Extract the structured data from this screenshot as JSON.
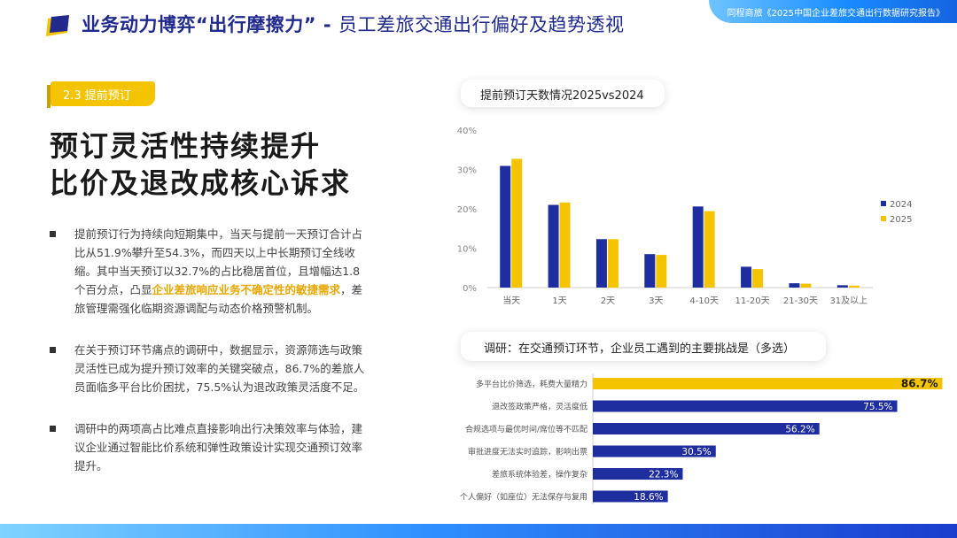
{
  "header": {
    "title_bold": "业务动力博弈“出行摩擦力”",
    "title_sep": " - ",
    "title_sub": "员工差旅交通出行偏好及趋势透视",
    "report": "同程商旅《2025中国企业差旅交通出行数据研究报告》",
    "logo_icon": "document-logo-icon"
  },
  "section_tag": "2.3 提前预订",
  "headline": [
    "预订灵活性持续提升",
    "比价及退改成核心诉求"
  ],
  "bullets": [
    {
      "before": "提前预订行为持续向短期集中，当天与提前一天预订合计占比从51.9%攀升至54.3%，而四天以上中长期预订全线收缩。其中当天预订以32.7%的占比稳居首位，且增幅达1.8个百分点，凸显",
      "highlight": "企业差旅响应业务不确定性的敏捷需求",
      "after": "，差旅管理需强化临期资源调配与动态价格预警机制。"
    },
    {
      "text": "在关于预订环节痛点的调研中，数据显示，资源筛选与政策灵活性已成为提升预订效率的关键突破点，86.7%的差旅人员面临多平台比价困扰，75.5%认为退改政策灵活度不足。"
    },
    {
      "text": "调研中的两项高占比难点直接影响出行决策效率与体验，建议企业通过智能比价系统和弹性政策设计实现交通预订效率提升。"
    }
  ],
  "colors": {
    "navy": "#1f2e9e",
    "yellow": "#f5c400",
    "title_blue": "#1f2a8c"
  },
  "chart_data": [
    {
      "type": "bar",
      "title": "提前预订天数情况2025vs2024",
      "categories": [
        "当天",
        "1天",
        "2天",
        "3天",
        "4-10天",
        "11-20天",
        "21-30天",
        "31及以上"
      ],
      "series": [
        {
          "name": "2024",
          "color": "#1f2e9e",
          "values": [
            30.9,
            21.0,
            12.3,
            8.5,
            20.6,
            5.3,
            1.1,
            0.6
          ]
        },
        {
          "name": "2025",
          "color": "#f5c400",
          "values": [
            32.7,
            21.6,
            12.3,
            8.3,
            19.4,
            4.7,
            1.0,
            0.5
          ]
        }
      ],
      "ylim": [
        0,
        40
      ],
      "yticks": [
        "0%",
        "10%",
        "20%",
        "30%",
        "40%"
      ],
      "grid": false,
      "legend": "right"
    },
    {
      "type": "bar",
      "orientation": "horizontal",
      "title": "调研：在交通预订环节，企业员工遇到的主要挑战是（多选）",
      "categories": [
        "多平台比价筛选，耗费大量精力",
        "退改签政策严格，灵活度低",
        "合规选项与最优时间/席位等不匹配",
        "审批进度无法实时追踪，影响出票",
        "差旅系统体验差，操作复杂",
        "个人偏好（如座位）无法保存与复用"
      ],
      "values": [
        86.7,
        75.5,
        56.2,
        30.5,
        22.3,
        18.6
      ],
      "labels": [
        "86.7%",
        "75.5%",
        "56.2%",
        "30.5%",
        "22.3%",
        "18.6%"
      ],
      "highlight_index": 0,
      "xlim": [
        0,
        100
      ]
    }
  ]
}
